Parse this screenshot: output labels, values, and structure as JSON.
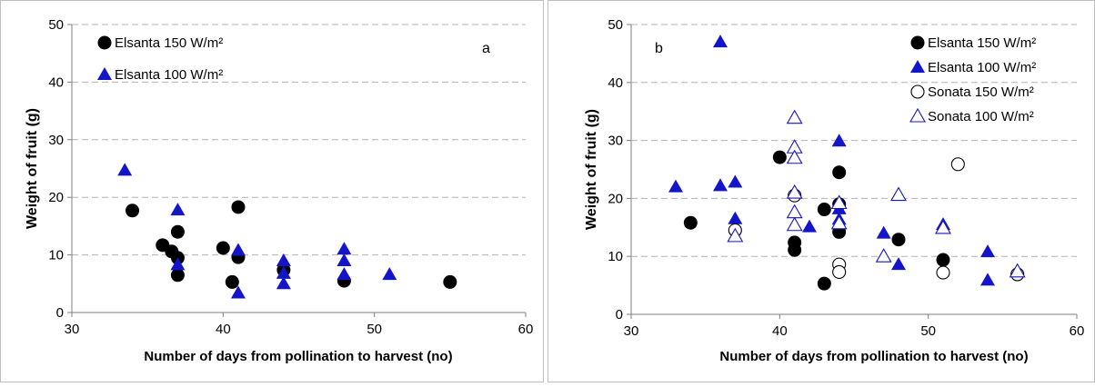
{
  "chart_data": [
    {
      "type": "scatter",
      "panel_label": "a",
      "xlabel": "Number of days  from pollination to harvest (no)",
      "ylabel": "Weight of fruit (g)",
      "xlim": [
        30,
        60
      ],
      "ylim": [
        0,
        50
      ],
      "xticks": [
        "30",
        "40",
        "50",
        "60"
      ],
      "yticks": [
        "0",
        "10",
        "20",
        "30",
        "40",
        "50"
      ],
      "grid": "horizontal-dashed",
      "legend_position": "top-left",
      "series": [
        {
          "name": "Elsanta 150 W/m²",
          "marker": "filled-circle",
          "color": "#000000",
          "points": [
            [
              34,
              17.7
            ],
            [
              36,
              11.7
            ],
            [
              36.6,
              10.6
            ],
            [
              37,
              14
            ],
            [
              37,
              9.5
            ],
            [
              37,
              6.5
            ],
            [
              40,
              11.2
            ],
            [
              40.6,
              5.3
            ],
            [
              41,
              18.3
            ],
            [
              41,
              9.6
            ],
            [
              44,
              7.4
            ],
            [
              48,
              5.5
            ],
            [
              55,
              5.3
            ]
          ]
        },
        {
          "name": "Elsanta 100 W/m²",
          "marker": "filled-triangle",
          "color": "#1414c8",
          "points": [
            [
              33.5,
              24.7
            ],
            [
              37,
              17.8
            ],
            [
              37,
              8.3
            ],
            [
              41,
              10.8
            ],
            [
              41,
              3.4
            ],
            [
              44,
              9
            ],
            [
              44,
              6.8
            ],
            [
              44,
              5
            ],
            [
              48,
              11
            ],
            [
              48,
              9
            ],
            [
              48,
              6.6
            ],
            [
              51,
              6.6
            ]
          ]
        }
      ]
    },
    {
      "type": "scatter",
      "panel_label": "b",
      "xlabel": "Number of days  from pollination to harvest (no)",
      "ylabel": "Weight of fruit (g)",
      "xlim": [
        30,
        60
      ],
      "ylim": [
        0,
        50
      ],
      "xticks": [
        "30",
        "40",
        "50",
        "60"
      ],
      "yticks": [
        "0",
        "10",
        "20",
        "30",
        "40",
        "50"
      ],
      "grid": "horizontal-dashed",
      "legend_position": "top-right",
      "series": [
        {
          "name": "Elsanta 150 W/m²",
          "marker": "filled-circle",
          "color": "#000000",
          "points": [
            [
              34,
              15.8
            ],
            [
              40,
              27.1
            ],
            [
              41,
              12.4
            ],
            [
              41,
              11.1
            ],
            [
              43,
              18.1
            ],
            [
              43,
              5.3
            ],
            [
              44,
              24.5
            ],
            [
              44,
              19
            ],
            [
              44,
              14.2
            ],
            [
              48,
              12.9
            ],
            [
              51,
              9.4
            ]
          ]
        },
        {
          "name": "Elsanta 100 W/m²",
          "marker": "filled-triangle",
          "color": "#1414c8",
          "points": [
            [
              33,
              22
            ],
            [
              36,
              47
            ],
            [
              36,
              22.2
            ],
            [
              37,
              22.8
            ],
            [
              37,
              16.5
            ],
            [
              42,
              15.1
            ],
            [
              44,
              29.9
            ],
            [
              44,
              18.2
            ],
            [
              44,
              16.4
            ],
            [
              47,
              14
            ],
            [
              48,
              8.6
            ],
            [
              51,
              15.5
            ],
            [
              54,
              10.8
            ],
            [
              54,
              5.9
            ]
          ]
        },
        {
          "name": "Sonata 150 W/m²",
          "marker": "open-circle",
          "color": "#000000",
          "points": [
            [
              37,
              14.5
            ],
            [
              41,
              20.5
            ],
            [
              44,
              8.6
            ],
            [
              44,
              7.3
            ],
            [
              51,
              7.2
            ],
            [
              52,
              25.9
            ],
            [
              56,
              6.9
            ]
          ]
        },
        {
          "name": "Sonata 100 W/m²",
          "marker": "open-triangle",
          "color": "#1414c8",
          "points": [
            [
              37,
              13.5
            ],
            [
              41,
              33.9
            ],
            [
              41,
              28.8
            ],
            [
              41,
              27
            ],
            [
              41,
              21
            ],
            [
              41,
              17.6
            ],
            [
              41,
              15.4
            ],
            [
              44,
              19.2
            ],
            [
              44,
              15.7
            ],
            [
              47,
              10
            ],
            [
              48,
              20.6
            ],
            [
              51,
              14.9
            ],
            [
              56,
              7.4
            ]
          ]
        }
      ]
    }
  ]
}
